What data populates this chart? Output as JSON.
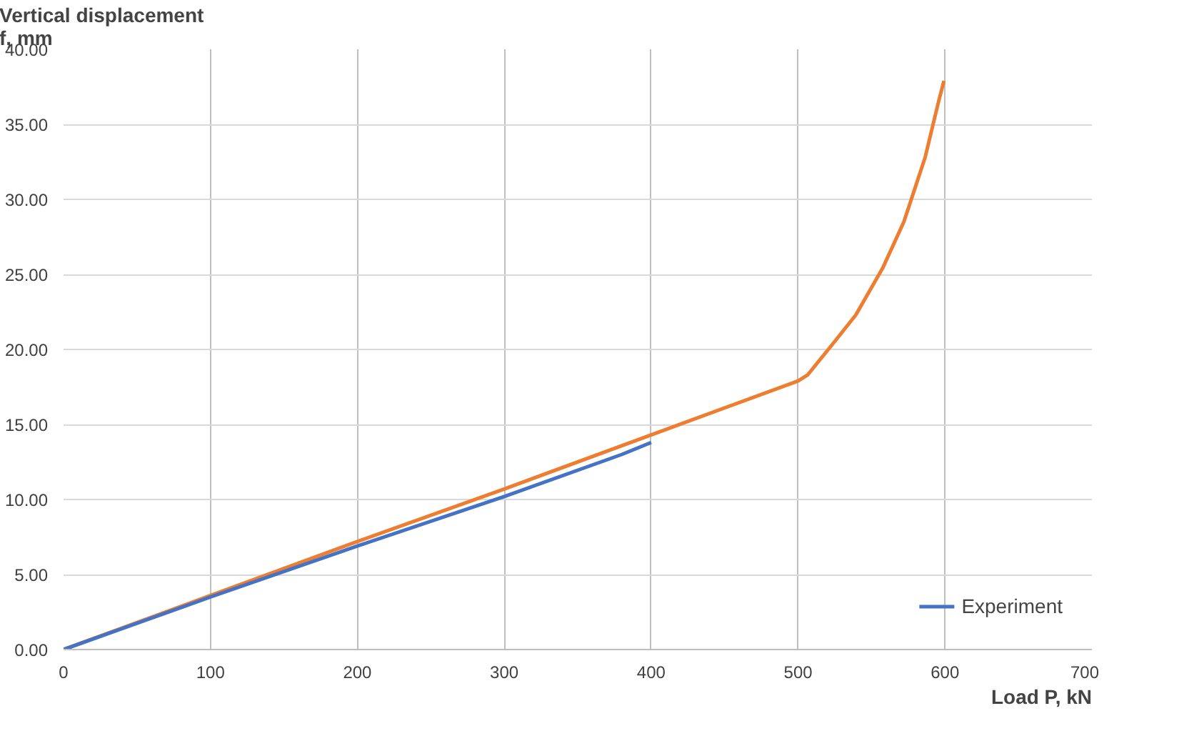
{
  "chart_data": {
    "type": "line",
    "xlabel": "Load P, kN",
    "ylabel": "Vertical displacement\nf, mm",
    "xlim": [
      0,
      700
    ],
    "xticks": [
      0,
      100,
      200,
      300,
      400,
      500,
      600,
      700
    ],
    "ylim": [
      0,
      40
    ],
    "yticks": [
      {
        "value": 0,
        "label": "0.00"
      },
      {
        "value": 5,
        "label": "5.00"
      },
      {
        "value": 10,
        "label": "10.00"
      },
      {
        "value": 15,
        "label": "15.00"
      },
      {
        "value": 20,
        "label": "20.00"
      },
      {
        "value": 25,
        "label": "25.00"
      },
      {
        "value": 30,
        "label": "30.00"
      },
      {
        "value": 35,
        "label": "35.00"
      },
      {
        "value": 40,
        "label": "40.00"
      }
    ],
    "grid": true,
    "legend": "bottom right",
    "marker": "none",
    "line_style": "solid",
    "series": [
      {
        "color": "#ed7d31",
        "x": [
          0,
          100,
          200,
          300,
          400,
          500,
          506.5,
          524.7,
          539.3,
          557.5,
          572,
          586.5,
          595.6,
          599.3
        ],
        "values": [
          0,
          3.6,
          7.2,
          10.7,
          14.3,
          17.9,
          18.3,
          20.5,
          22.3,
          25.4,
          28.5,
          32.8,
          36.5,
          37.9
        ]
      },
      {
        "name": "Experiment",
        "color": "#4472c4",
        "x": [
          0,
          100,
          200,
          300,
          380,
          400
        ],
        "values": [
          0,
          3.5,
          6.9,
          10.2,
          13.0,
          13.8
        ]
      }
    ]
  }
}
